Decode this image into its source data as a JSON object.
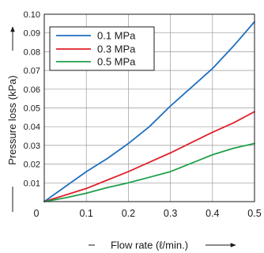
{
  "chart_data": {
    "type": "line",
    "xlabel": "Flow rate (ℓ/min.)",
    "ylabel": "Pressure loss (kPa)",
    "xlim": [
      0,
      0.5
    ],
    "ylim": [
      0,
      0.1
    ],
    "x_ticks": [
      "0",
      "0.1",
      "0.2",
      "0.3",
      "0.4",
      "0.5"
    ],
    "y_ticks": [
      "0.01",
      "0.02",
      "0.03",
      "0.04",
      "0.05",
      "0.06",
      "0.07",
      "0.08",
      "0.09",
      "0.10"
    ],
    "grid": true,
    "legend_position": "top-left",
    "series": [
      {
        "name": "0.1 MPa",
        "color": "#1f6fbf",
        "x": [
          0,
          0.05,
          0.1,
          0.15,
          0.2,
          0.25,
          0.3,
          0.35,
          0.4,
          0.45,
          0.5
        ],
        "y": [
          0,
          0.008,
          0.016,
          0.023,
          0.031,
          0.04,
          0.051,
          0.061,
          0.071,
          0.083,
          0.096
        ]
      },
      {
        "name": "0.3 MPa",
        "color": "#e0202a",
        "x": [
          0,
          0.05,
          0.1,
          0.15,
          0.2,
          0.25,
          0.3,
          0.35,
          0.4,
          0.45,
          0.5
        ],
        "y": [
          0,
          0.0035,
          0.007,
          0.0115,
          0.016,
          0.021,
          0.026,
          0.0315,
          0.037,
          0.042,
          0.048
        ]
      },
      {
        "name": "0.5 MPa",
        "color": "#1ea04a",
        "x": [
          0,
          0.05,
          0.1,
          0.15,
          0.2,
          0.25,
          0.3,
          0.35,
          0.4,
          0.45,
          0.5
        ],
        "y": [
          0,
          0.002,
          0.0045,
          0.0075,
          0.01,
          0.013,
          0.016,
          0.0205,
          0.025,
          0.0285,
          0.031
        ]
      }
    ]
  }
}
